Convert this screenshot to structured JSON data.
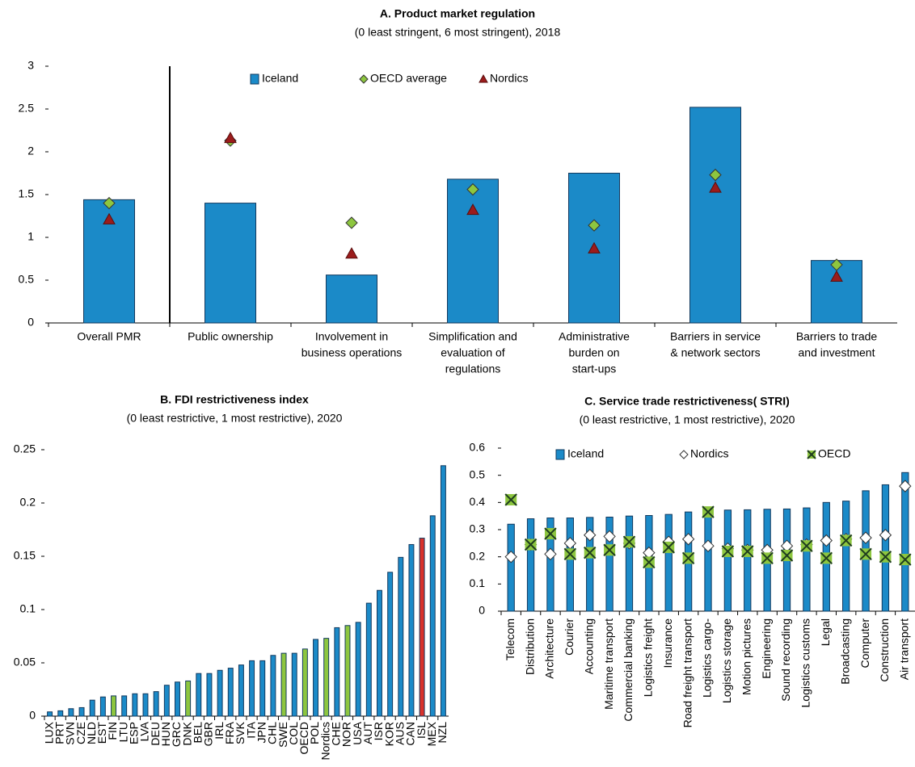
{
  "chart_data": [
    {
      "type": "bar",
      "title": "A. Product market regulation",
      "subtitle": "(0 least stringent, 6 most stringent), 2018",
      "categories": [
        [
          "Overall PMR"
        ],
        [
          "Public ownership"
        ],
        [
          "Involvement in",
          "business operations"
        ],
        [
          "Simplification and",
          "evaluation of",
          "regulations"
        ],
        [
          "Administrative",
          "burden on",
          "start-ups"
        ],
        [
          "Barriers in service",
          "& network sectors"
        ],
        [
          "Barriers to trade",
          "and investment"
        ]
      ],
      "series": [
        {
          "name": "Iceland",
          "marker": "bar",
          "color": "#1b8ac8",
          "values": [
            1.44,
            1.4,
            0.56,
            1.68,
            1.75,
            2.52,
            0.73
          ]
        },
        {
          "name": "OECD average",
          "marker": "diamond",
          "color": "#8dc63f",
          "values": [
            1.4,
            2.13,
            1.17,
            1.56,
            1.14,
            1.73,
            0.68
          ]
        },
        {
          "name": "Nordics",
          "marker": "triangle",
          "color": "#9b1c1c",
          "values": [
            1.21,
            2.16,
            0.81,
            1.32,
            0.87,
            1.58,
            0.54
          ]
        }
      ],
      "ylim": [
        0,
        3
      ],
      "yticks": [
        0,
        0.5,
        1,
        1.5,
        2,
        2.5,
        3
      ]
    },
    {
      "type": "bar",
      "title": "B. FDI restrictiveness index",
      "subtitle": "(0 least restrictive, 1 most restrictive), 2020",
      "categories": [
        "LUX",
        "PRT",
        "SVN",
        "CZE",
        "NLD",
        "EST",
        "FIN",
        "LTU",
        "ESP",
        "LVA",
        "DEU",
        "HUN",
        "GRC",
        "DNK",
        "BEL",
        "GBR",
        "IRL",
        "FRA",
        "SVK",
        "ITA",
        "JPN",
        "CHL",
        "SWE",
        "COL",
        "OECD",
        "POL",
        "Nordics",
        "CHE",
        "NOR",
        "USA",
        "AUT",
        "ISR",
        "KOR",
        "AUS",
        "CAN",
        "ISL",
        "MEX",
        "NZL"
      ],
      "series": [
        {
          "marker": "bar",
          "values": [
            0.004,
            0.005,
            0.007,
            0.008,
            0.015,
            0.018,
            0.019,
            0.019,
            0.021,
            0.021,
            0.023,
            0.029,
            0.032,
            0.033,
            0.04,
            0.04,
            0.043,
            0.045,
            0.048,
            0.052,
            0.052,
            0.057,
            0.059,
            0.059,
            0.063,
            0.072,
            0.073,
            0.083,
            0.085,
            0.088,
            0.106,
            0.118,
            0.135,
            0.149,
            0.161,
            0.167,
            0.188,
            0.235
          ],
          "colors": [
            "#1b8ac8",
            "#1b8ac8",
            "#1b8ac8",
            "#1b8ac8",
            "#1b8ac8",
            "#1b8ac8",
            "#8dc63f",
            "#1b8ac8",
            "#1b8ac8",
            "#1b8ac8",
            "#1b8ac8",
            "#1b8ac8",
            "#1b8ac8",
            "#8dc63f",
            "#1b8ac8",
            "#1b8ac8",
            "#1b8ac8",
            "#1b8ac8",
            "#1b8ac8",
            "#1b8ac8",
            "#1b8ac8",
            "#1b8ac8",
            "#8dc63f",
            "#1b8ac8",
            "#8dc63f",
            "#1b8ac8",
            "#8dc63f",
            "#1b8ac8",
            "#8dc63f",
            "#1b8ac8",
            "#1b8ac8",
            "#1b8ac8",
            "#1b8ac8",
            "#1b8ac8",
            "#1b8ac8",
            "#d9312b",
            "#1b8ac8",
            "#1b8ac8"
          ]
        }
      ],
      "ylim": [
        0,
        0.25
      ],
      "yticks": [
        0,
        0.05,
        0.1,
        0.15,
        0.2,
        0.25
      ]
    },
    {
      "type": "bar",
      "title": "C. Service trade restrictiveness( STRI)",
      "subtitle": "(0 least restrictive, 1 most restrictive), 2020",
      "categories": [
        "Telecom",
        "Distribution",
        "Architecture",
        "Courier",
        "Accounting",
        "Maritime transport",
        "Commercial banking",
        "Logistics freight",
        "Insurance",
        "Road freight transport",
        "Logistics cargo-",
        "Logistics storage",
        "Motion pictures",
        "Engineering",
        "Sound recording",
        "Logistics customs",
        "Legal",
        "Broadcasting",
        "Computer",
        "Construction",
        "Air transport"
      ],
      "series": [
        {
          "name": "Iceland",
          "marker": "bar",
          "color": "#1b8ac8",
          "values": [
            0.32,
            0.34,
            0.343,
            0.343,
            0.345,
            0.346,
            0.35,
            0.352,
            0.356,
            0.365,
            0.37,
            0.372,
            0.373,
            0.375,
            0.376,
            0.38,
            0.4,
            0.405,
            0.443,
            0.465,
            0.51
          ]
        },
        {
          "name": "Nordics",
          "marker": "diamond",
          "color": "#ffffff",
          "values": [
            0.2,
            0.245,
            0.21,
            0.25,
            0.28,
            0.275,
            0.25,
            0.215,
            0.255,
            0.265,
            0.24,
            0.23,
            0.225,
            0.225,
            0.24,
            0.245,
            0.26,
            0.265,
            0.27,
            0.28,
            0.46
          ]
        },
        {
          "name": "OECD",
          "marker": "xsquare",
          "color": "#8dc63f",
          "values": [
            0.41,
            0.245,
            0.285,
            0.21,
            0.215,
            0.225,
            0.255,
            0.18,
            0.235,
            0.195,
            0.365,
            0.22,
            0.22,
            0.195,
            0.205,
            0.24,
            0.195,
            0.26,
            0.21,
            0.2,
            0.19
          ]
        }
      ],
      "ylim": [
        0,
        0.6
      ],
      "yticks": [
        0,
        0.1,
        0.2,
        0.3,
        0.4,
        0.5,
        0.6
      ]
    }
  ]
}
